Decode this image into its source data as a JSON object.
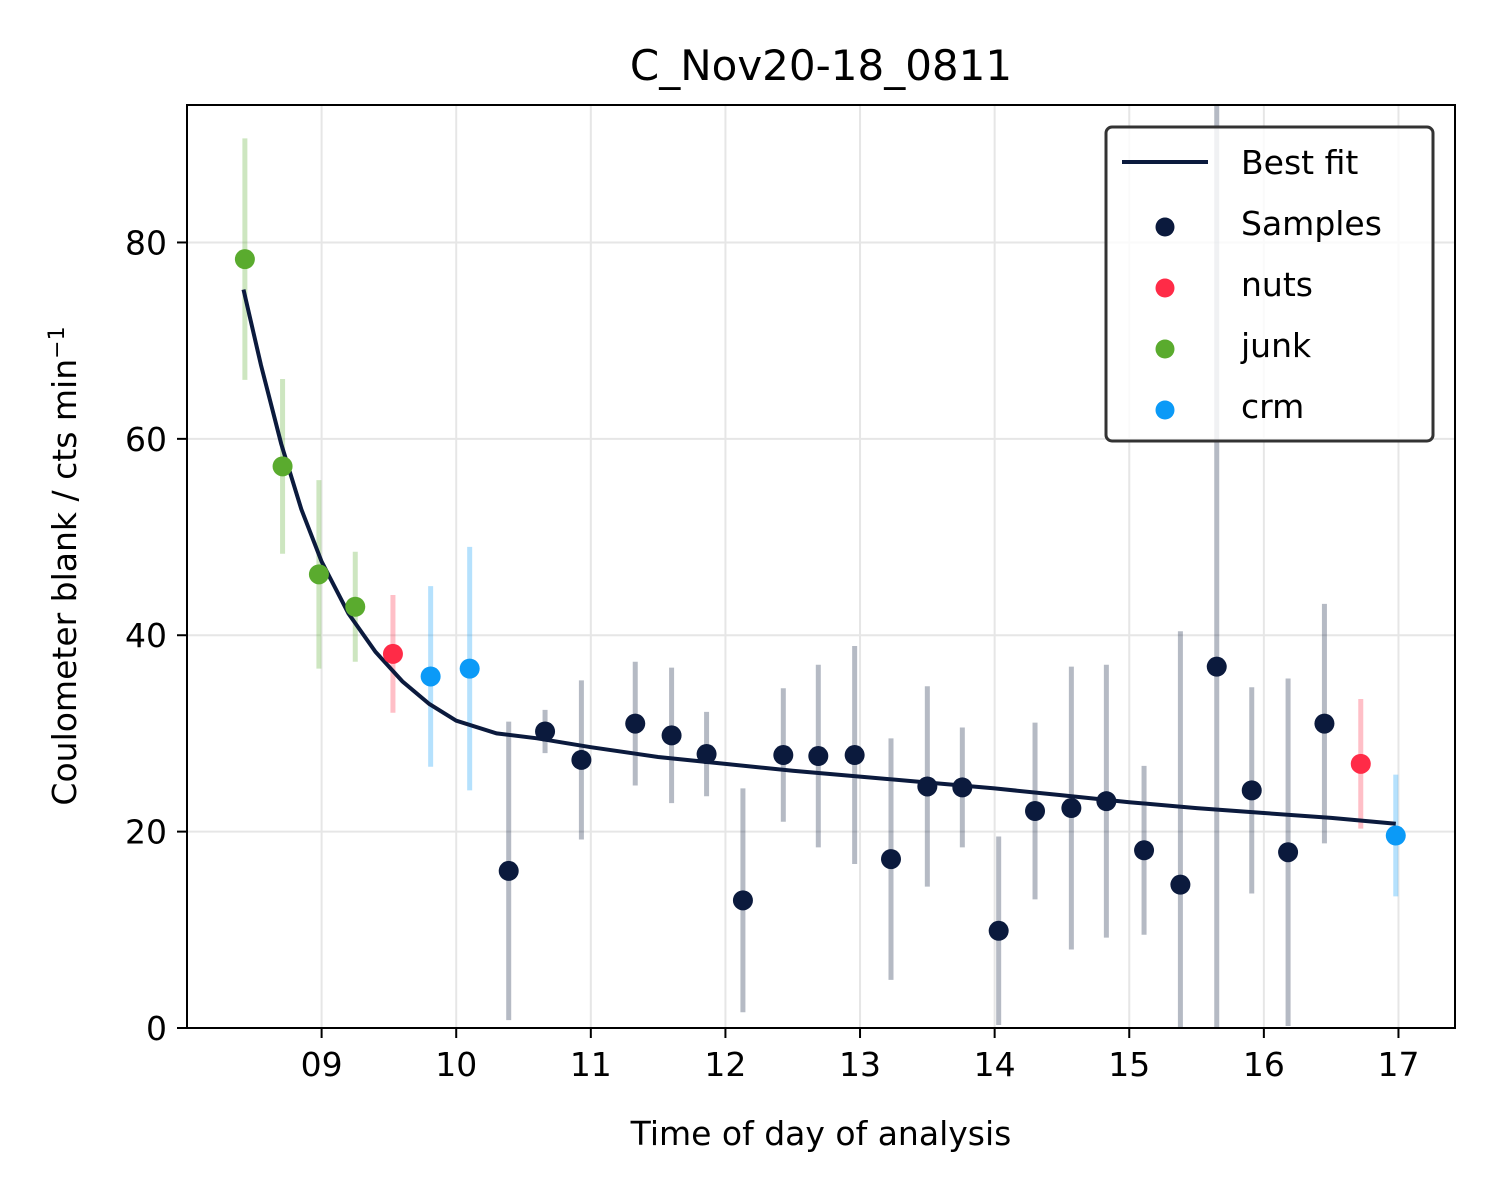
{
  "chart_data": {
    "type": "scatter",
    "title": "C_Nov20-18_0811",
    "xlabel": "Time of day of analysis",
    "ylabel": "Coulometer blank / cts min",
    "ylabel_superscript": "−1",
    "xlim": [
      8.0,
      17.42
    ],
    "ylim": [
      0,
      94
    ],
    "x_ticks": [
      9,
      10,
      11,
      12,
      13,
      14,
      15,
      16,
      17
    ],
    "x_tick_labels": [
      "09",
      "10",
      "11",
      "12",
      "13",
      "14",
      "15",
      "16",
      "17"
    ],
    "y_ticks": [
      0,
      20,
      40,
      60,
      80
    ],
    "y_tick_labels": [
      "0",
      "20",
      "40",
      "60",
      "80"
    ],
    "grid": true,
    "legend_position": "top-right",
    "colors": {
      "best_fit": "#0b1a3d",
      "samples": "#0b1a3d",
      "nuts": "#ff2b47",
      "junk": "#5aab2e",
      "crm": "#0b9af7"
    },
    "legend": [
      {
        "key": "best_fit",
        "label": "Best fit",
        "marker": "line"
      },
      {
        "key": "samples",
        "label": "Samples",
        "marker": "dot"
      },
      {
        "key": "nuts",
        "label": "nuts",
        "marker": "dot"
      },
      {
        "key": "junk",
        "label": "junk",
        "marker": "dot"
      },
      {
        "key": "crm",
        "label": "crm",
        "marker": "dot"
      }
    ],
    "best_fit": {
      "x": [
        8.42,
        8.55,
        8.7,
        8.85,
        9.0,
        9.2,
        9.4,
        9.6,
        9.8,
        10.0,
        10.3,
        10.6,
        11.0,
        11.5,
        12.0,
        12.5,
        13.0,
        13.5,
        14.0,
        14.5,
        15.0,
        15.5,
        16.0,
        16.5,
        16.98
      ],
      "y": [
        75.2,
        67.5,
        59.5,
        52.8,
        47.5,
        42.2,
        38.3,
        35.3,
        33.0,
        31.3,
        30.0,
        29.5,
        28.6,
        27.6,
        26.9,
        26.2,
        25.6,
        25.0,
        24.4,
        23.7,
        23.0,
        22.4,
        21.9,
        21.4,
        20.8
      ]
    },
    "series": [
      {
        "name": "Samples",
        "key": "samples",
        "points": [
          {
            "x": 10.39,
            "y": 16.0,
            "err": 15.2
          },
          {
            "x": 10.66,
            "y": 30.2,
            "err": 2.2
          },
          {
            "x": 10.93,
            "y": 27.3,
            "err": 8.1
          },
          {
            "x": 11.33,
            "y": 31.0,
            "err": 6.3
          },
          {
            "x": 11.6,
            "y": 29.8,
            "err": 6.9
          },
          {
            "x": 11.86,
            "y": 27.9,
            "err": 4.3
          },
          {
            "x": 12.13,
            "y": 13.0,
            "err": 11.4
          },
          {
            "x": 12.43,
            "y": 27.8,
            "err": 6.8
          },
          {
            "x": 12.69,
            "y": 27.7,
            "err": 9.3
          },
          {
            "x": 12.96,
            "y": 27.8,
            "err": 11.1
          },
          {
            "x": 13.23,
            "y": 17.2,
            "err": 12.3
          },
          {
            "x": 13.5,
            "y": 24.6,
            "err": 10.2
          },
          {
            "x": 13.76,
            "y": 24.5,
            "err": 6.1
          },
          {
            "x": 14.03,
            "y": 9.9,
            "err": 9.6
          },
          {
            "x": 14.3,
            "y": 22.1,
            "err": 9.0
          },
          {
            "x": 14.57,
            "y": 22.4,
            "err": 14.4
          },
          {
            "x": 14.83,
            "y": 23.1,
            "err": 13.9
          },
          {
            "x": 15.11,
            "y": 18.1,
            "err": 8.6
          },
          {
            "x": 15.38,
            "y": 14.6,
            "err": 25.8
          },
          {
            "x": 15.65,
            "y": 36.8,
            "err": 58.0
          },
          {
            "x": 15.91,
            "y": 24.2,
            "err": 10.5
          },
          {
            "x": 16.18,
            "y": 17.9,
            "err": 17.7
          },
          {
            "x": 16.45,
            "y": 31.0,
            "err": 12.2
          }
        ]
      },
      {
        "name": "nuts",
        "key": "nuts",
        "points": [
          {
            "x": 9.53,
            "y": 38.1,
            "err": 6.0
          },
          {
            "x": 16.72,
            "y": 26.9,
            "err": 6.6
          }
        ]
      },
      {
        "name": "junk",
        "key": "junk",
        "points": [
          {
            "x": 8.43,
            "y": 78.3,
            "err": 12.3
          },
          {
            "x": 8.71,
            "y": 57.2,
            "err": 8.9
          },
          {
            "x": 8.98,
            "y": 46.2,
            "err": 9.6
          },
          {
            "x": 9.25,
            "y": 42.9,
            "err": 5.6
          }
        ]
      },
      {
        "name": "crm",
        "key": "crm",
        "points": [
          {
            "x": 9.81,
            "y": 35.8,
            "err": 9.2
          },
          {
            "x": 10.1,
            "y": 36.6,
            "err": 12.4
          },
          {
            "x": 16.98,
            "y": 19.6,
            "err": 6.2
          }
        ]
      }
    ]
  }
}
